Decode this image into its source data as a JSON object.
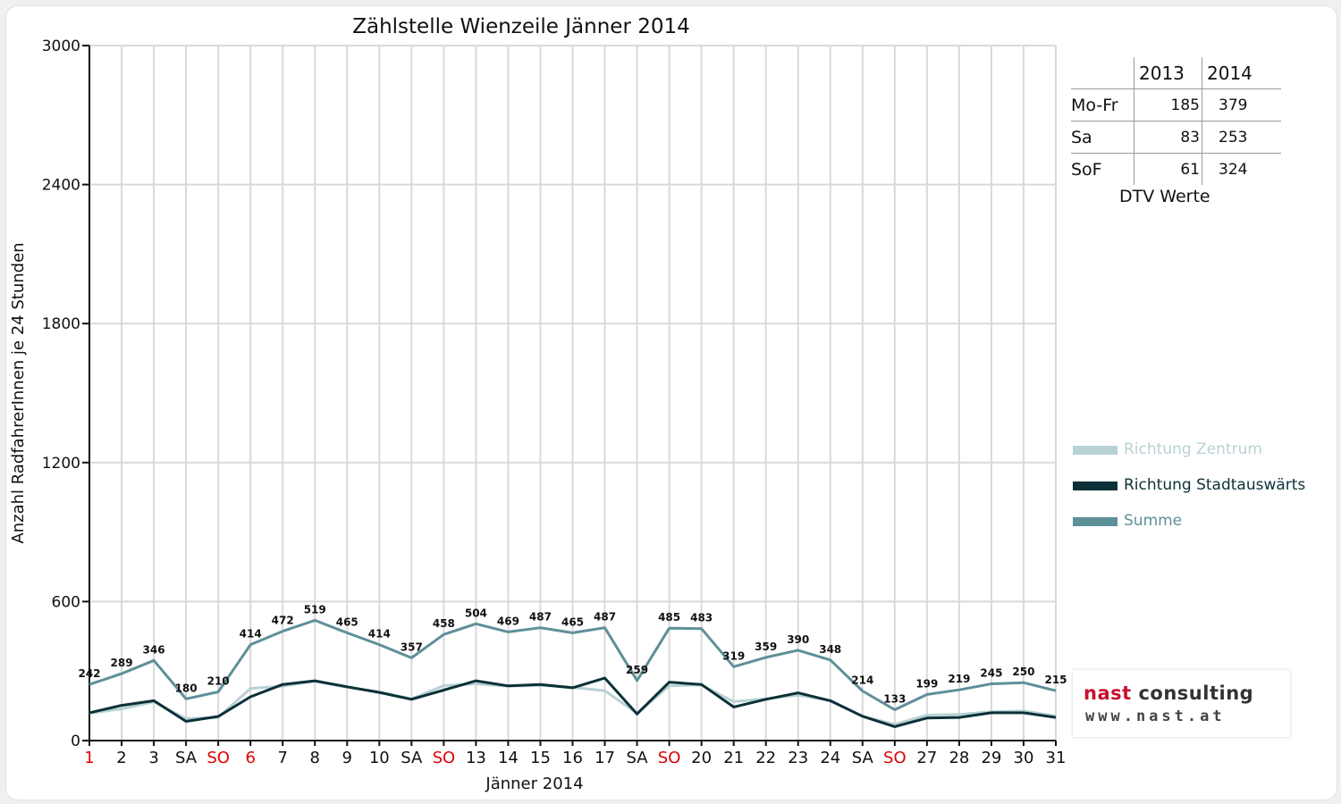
{
  "chart_data": {
    "type": "line",
    "title": "Zählstelle Wienzeile Jänner 2014",
    "xlabel": "Jänner 2014",
    "ylabel": "Anzahl RadfahrerInnen je 24 Stunden",
    "ylim": [
      0,
      3000
    ],
    "yticks": [
      0,
      600,
      1200,
      1800,
      2400,
      3000
    ],
    "grid": true,
    "legend_position": "right",
    "categories": [
      "1",
      "2",
      "3",
      "SA",
      "SO",
      "6",
      "7",
      "8",
      "9",
      "10",
      "SA",
      "SO",
      "13",
      "14",
      "15",
      "16",
      "17",
      "SA",
      "SO",
      "20",
      "21",
      "22",
      "23",
      "24",
      "SA",
      "SO",
      "27",
      "28",
      "29",
      "30",
      "31"
    ],
    "category_colors": [
      "#e00000",
      "#111111",
      "#111111",
      "#111111",
      "#e00000",
      "#e00000",
      "#111111",
      "#111111",
      "#111111",
      "#111111",
      "#111111",
      "#e00000",
      "#111111",
      "#111111",
      "#111111",
      "#111111",
      "#111111",
      "#111111",
      "#e00000",
      "#111111",
      "#111111",
      "#111111",
      "#111111",
      "#111111",
      "#111111",
      "#e00000",
      "#111111",
      "#111111",
      "#111111",
      "#111111",
      "#111111"
    ],
    "series": [
      {
        "name": "Richtung Zentrum",
        "color": "#b8d2d4",
        "values": [
          118,
          137,
          167,
          95,
          100,
          225,
          235,
          256,
          230,
          210,
          180,
          237,
          245,
          235,
          238,
          230,
          215,
          118,
          236,
          240,
          168,
          180,
          196,
          172,
          105,
          70,
          110,
          113,
          124,
          128,
          106
        ]
      },
      {
        "name": "Richtung Stadtauswärts",
        "color": "#0c3038",
        "values": [
          120,
          152,
          172,
          83,
          104,
          189,
          242,
          258,
          232,
          208,
          178,
          218,
          258,
          236,
          242,
          228,
          270,
          115,
          252,
          242,
          145,
          178,
          206,
          172,
          105,
          60,
          97,
          100,
          120,
          120,
          100
        ]
      },
      {
        "name": "Summe",
        "color": "#5e9098",
        "values": [
          242,
          289,
          346,
          180,
          210,
          414,
          472,
          519,
          465,
          414,
          357,
          458,
          504,
          469,
          487,
          465,
          487,
          259,
          485,
          483,
          319,
          359,
          390,
          348,
          214,
          133,
          199,
          219,
          245,
          250,
          215
        ]
      }
    ],
    "data_labels": [
      "242",
      "289",
      "346",
      "180",
      "210",
      "414",
      "472",
      "519",
      "465",
      "414",
      "357",
      "458",
      "504",
      "469",
      "487",
      "465",
      "487",
      "259",
      "485",
      "483",
      "319",
      "359",
      "390",
      "348",
      "214",
      "133",
      "199",
      "219",
      "245",
      "250",
      "215"
    ]
  },
  "dtv": {
    "header": [
      "",
      "2013",
      "2014"
    ],
    "rows": [
      {
        "label": "Mo-Fr",
        "v2013": "185",
        "v2014": "379"
      },
      {
        "label": "Sa",
        "v2013": "83",
        "v2014": "253"
      },
      {
        "label": "SoF",
        "v2013": "61",
        "v2014": "324"
      }
    ],
    "caption": "DTV Werte"
  },
  "logo": {
    "name_red": "nast",
    "name_rest": " consulting",
    "url": "www.nast.at"
  }
}
